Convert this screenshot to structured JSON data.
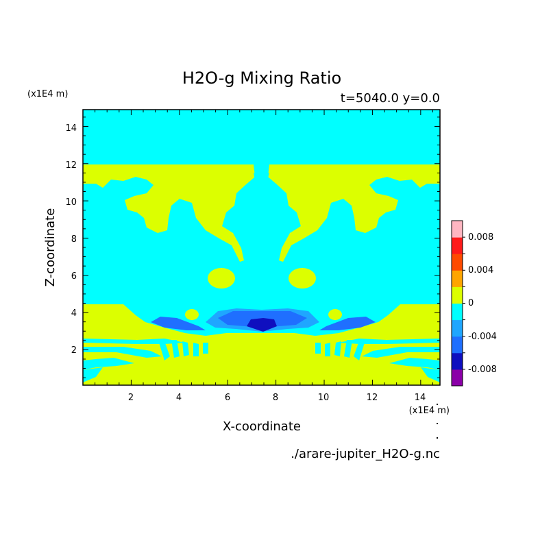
{
  "chart_data": {
    "type": "heatmap",
    "title": "H2O-g Mixing Ratio",
    "subtitle": "t=5040.0 y=0.0",
    "xlabel": "X-coordinate",
    "ylabel": "Z-coordinate",
    "x_unit": "(x1E4 m)",
    "y_unit": "(x1E4 m)",
    "xlim": [
      0,
      14.8
    ],
    "ylim": [
      0.1,
      14.9
    ],
    "x_ticks": [
      "2",
      "4",
      "6",
      "8",
      "10",
      "12",
      "14"
    ],
    "y_ticks": [
      "2",
      "4",
      "6",
      "8",
      "10",
      "12",
      "14"
    ],
    "source_file": "./arare-jupiter_H2O-g.nc",
    "colorbar": {
      "levels": [
        -0.01,
        -0.008,
        -0.006,
        -0.004,
        -0.002,
        0,
        0.002,
        0.004,
        0.006,
        0.008,
        0.01
      ],
      "colors": [
        "#8b00a8",
        "#0f0fbf",
        "#1f6fff",
        "#1fa6ff",
        "#00ffff",
        "#dcff00",
        "#ffa500",
        "#ff4a00",
        "#ff1a1a",
        "#ffb6c1"
      ],
      "tick_labels": [
        "-0.008",
        "-0.004",
        "0",
        "0.004",
        "0.008"
      ]
    },
    "regions": [
      {
        "value_range": [
          0,
          0.002
        ],
        "desc": "upper band",
        "x": [
          0,
          14.8
        ],
        "z": [
          10.4,
          11.8
        ]
      },
      {
        "value_range": [
          0,
          0.002
        ],
        "desc": "lower band",
        "x": [
          0,
          14.8
        ],
        "z": [
          0.1,
          4.4
        ]
      },
      {
        "value_range": [
          0,
          0.002
        ],
        "desc": "blob left",
        "center": [
          5.3,
          5.6
        ]
      },
      {
        "value_range": [
          0,
          0.002
        ],
        "desc": "blob right",
        "center": [
          9.7,
          5.6
        ]
      },
      {
        "value_range": [
          -0.004,
          -0.002
        ],
        "desc": "center trough",
        "center": [
          7.5,
          3.6
        ]
      },
      {
        "value_range": [
          -0.008,
          -0.006
        ],
        "desc": "center core",
        "center": [
          7.5,
          3.3
        ]
      }
    ]
  },
  "colors": {
    "background": "#00ffff",
    "positive": "#dcff00",
    "neg_light": "#1fa6ff",
    "neg_mid": "#1f6fff",
    "neg_strong": "#0f0fbf"
  }
}
